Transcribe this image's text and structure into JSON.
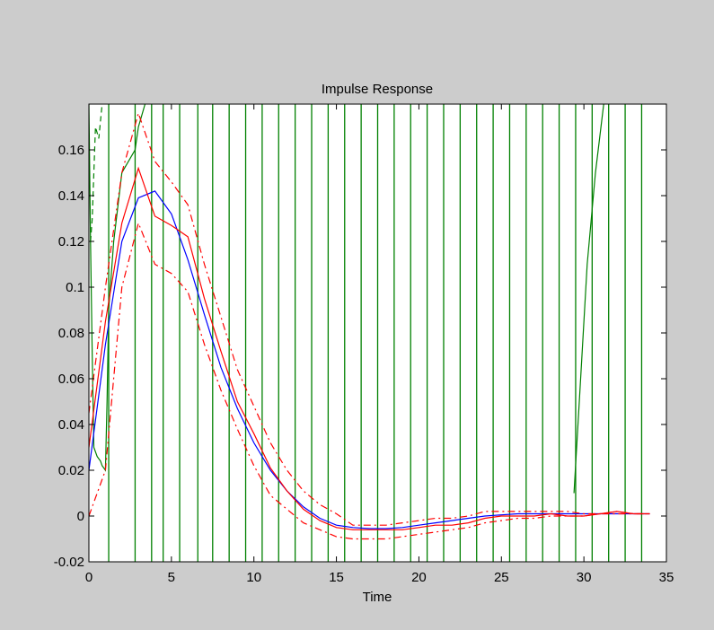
{
  "window": {
    "background": "#cccccc"
  },
  "chart_data": {
    "type": "line",
    "title": "Impulse Response",
    "xlabel": "Time",
    "ylabel": "",
    "xlim": [
      0,
      35
    ],
    "ylim": [
      -0.02,
      0.18
    ],
    "xticks": [
      0,
      5,
      10,
      15,
      20,
      25,
      30,
      35
    ],
    "yticks": [
      -0.02,
      0,
      0.02,
      0.04,
      0.06,
      0.08,
      0.1,
      0.12,
      0.14,
      0.16
    ],
    "ytick_labels": [
      "-0.02",
      "0",
      "0.02",
      "0.04",
      "0.06",
      "0.08",
      "0.1",
      "0.12",
      "0.14",
      "0.16"
    ],
    "grid": false,
    "plot_background": "#ffffff",
    "green_vertical_lines_x": [
      1.2,
      2.8,
      3.8,
      4.5,
      5.5,
      6.6,
      7.5,
      8.5,
      9.5,
      10.5,
      11.5,
      12.5,
      13.5,
      14.5,
      15.5,
      16.5,
      17.5,
      18.5,
      19.5,
      20.5,
      21.5,
      22.5,
      23.5,
      24.5,
      25.5,
      26.5,
      27.5,
      28.5,
      29.5,
      30.5,
      31.5,
      32.5,
      33.5
    ],
    "series": [
      {
        "color": "#008000",
        "style": "solid",
        "x": [
          0,
          0.1,
          0.2,
          0.3,
          0.5,
          0.7,
          0.8,
          1.0,
          1.1,
          1.2,
          1.5,
          2.0,
          2.8,
          3.0,
          3.4
        ],
        "y": [
          0.18,
          0.12,
          0.07,
          0.03,
          0.026,
          0.024,
          0.022,
          0.02,
          0.05,
          0.09,
          0.12,
          0.15,
          0.16,
          0.17,
          0.18
        ]
      },
      {
        "color": "#008000",
        "style": "dashed",
        "x": [
          0.1,
          0.2,
          0.3,
          0.4,
          0.6,
          0.8
        ],
        "y": [
          0.12,
          0.13,
          0.15,
          0.17,
          0.165,
          0.18
        ]
      },
      {
        "color": "#008000",
        "style": "solid",
        "x": [
          29.4,
          29.8,
          30.2,
          30.7,
          31.2
        ],
        "y": [
          0.01,
          0.06,
          0.11,
          0.15,
          0.18
        ]
      },
      {
        "color": "#0000ff",
        "style": "solid",
        "x": [
          0,
          1,
          2,
          3,
          4,
          5,
          6,
          7,
          8,
          9,
          10,
          11,
          12,
          13,
          14,
          15,
          16,
          17,
          18,
          19,
          20,
          21,
          22,
          23,
          24,
          25,
          26,
          27,
          28,
          29,
          30,
          31,
          32,
          33,
          34
        ],
        "y": [
          0.02,
          0.075,
          0.12,
          0.139,
          0.142,
          0.132,
          0.112,
          0.088,
          0.065,
          0.047,
          0.032,
          0.02,
          0.011,
          0.004,
          -0.001,
          -0.004,
          -0.005,
          -0.0055,
          -0.0055,
          -0.005,
          -0.004,
          -0.003,
          -0.002,
          -0.001,
          0.0,
          0.0005,
          0.001,
          0.001,
          0.001,
          0.001,
          0.001,
          0.001,
          0.001,
          0.001,
          0.001
        ]
      },
      {
        "color": "#ff0000",
        "style": "solid",
        "x": [
          0,
          1,
          2,
          3,
          4,
          5,
          6,
          7,
          8,
          9,
          10,
          11,
          12,
          13,
          14,
          15,
          16,
          17,
          18,
          19,
          20,
          21,
          22,
          23,
          24,
          25,
          26,
          27,
          28,
          29,
          30,
          31,
          32,
          33,
          34
        ],
        "y": [
          0.03,
          0.085,
          0.128,
          0.152,
          0.131,
          0.127,
          0.122,
          0.095,
          0.072,
          0.05,
          0.036,
          0.021,
          0.011,
          0.003,
          -0.002,
          -0.005,
          -0.006,
          -0.006,
          -0.006,
          -0.006,
          -0.005,
          -0.004,
          -0.004,
          -0.003,
          -0.001,
          0.0,
          0.0,
          0.0,
          0.001,
          0.0,
          0.0,
          0.001,
          0.002,
          0.001,
          0.001
        ]
      },
      {
        "color": "#ff0000",
        "style": "dashdot",
        "x": [
          0,
          1,
          2,
          3,
          4,
          5,
          6,
          7,
          8,
          9,
          10,
          11,
          12,
          13,
          14,
          15,
          16,
          17,
          18,
          19,
          20,
          21,
          22,
          23,
          24,
          25,
          26,
          27,
          28,
          29,
          30,
          31,
          32,
          33,
          34
        ],
        "y": [
          0.045,
          0.1,
          0.15,
          0.176,
          0.155,
          0.146,
          0.136,
          0.11,
          0.087,
          0.064,
          0.048,
          0.032,
          0.02,
          0.011,
          0.005,
          0.001,
          -0.004,
          -0.004,
          -0.004,
          -0.003,
          -0.002,
          -0.001,
          -0.001,
          0.0,
          0.002,
          0.002,
          0.002,
          0.002,
          0.002,
          0.002,
          0.001,
          0.001,
          0.002,
          0.001,
          0.001
        ]
      },
      {
        "color": "#ff0000",
        "style": "dashdot",
        "x": [
          0,
          1,
          2,
          3,
          4,
          5,
          6,
          7,
          8,
          9,
          10,
          11,
          12,
          13,
          14,
          15,
          16,
          17,
          18,
          19,
          20,
          21,
          22,
          23,
          24,
          25,
          26,
          27,
          28,
          29,
          30,
          31,
          32,
          33,
          34
        ],
        "y": [
          0.0,
          0.02,
          0.1,
          0.128,
          0.11,
          0.106,
          0.098,
          0.075,
          0.055,
          0.038,
          0.022,
          0.009,
          0.003,
          -0.003,
          -0.006,
          -0.009,
          -0.01,
          -0.01,
          -0.01,
          -0.009,
          -0.008,
          -0.007,
          -0.006,
          -0.005,
          -0.003,
          -0.002,
          -0.001,
          -0.001,
          0.0,
          0.0,
          0.0,
          0.001,
          0.001,
          0.001,
          0.001
        ]
      }
    ]
  }
}
